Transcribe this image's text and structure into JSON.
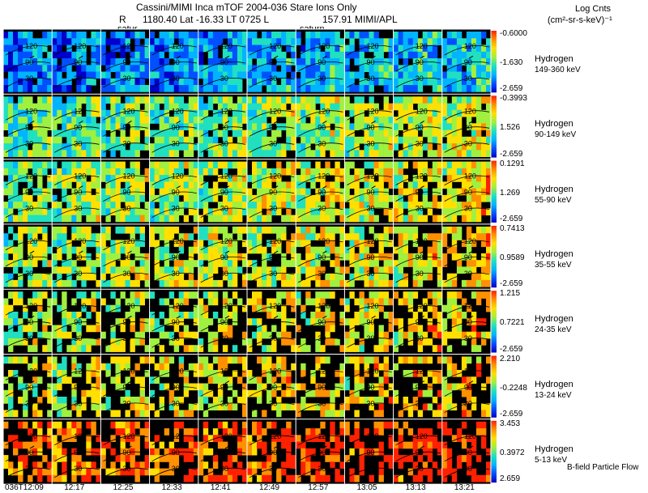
{
  "header": {
    "title": "Cassini/MIMI Inca mTOF  2004-036   Stare   Ions Only",
    "line2_r": "R",
    "line2_info": "1180.40 Lat -16.33 LT 0725 L",
    "line2_tail": "157.91  MIMI/APL",
    "units_line1": "Log Cnts",
    "units_line2": "(cm²-sr-s-keV)⁻¹",
    "saturn_label_1": "satur",
    "saturn_label_2": "saturn"
  },
  "footer": {
    "legend_text": "B-field Particle Flow"
  },
  "chart_data": {
    "type": "heatmap",
    "description_free": true,
    "times": [
      "036T12:09",
      "12:17",
      "12:25",
      "12:33",
      "12:41",
      "12:49",
      "12:57",
      "13:05",
      "13:13",
      "13:21"
    ],
    "rows": [
      {
        "species": "Hydrogen",
        "energy": "149-360 keV",
        "cb_max": "-0.6000",
        "cb_mid": "-1.630",
        "cb_min": "-2.659",
        "level": 0.18,
        "density": 0.9
      },
      {
        "species": "Hydrogen",
        "energy": "90-149 keV",
        "cb_max": "-0.3993",
        "cb_mid": "1.526",
        "cb_min": "-2.659",
        "level": 0.42,
        "density": 0.9
      },
      {
        "species": "Hydrogen",
        "energy": "55-90 keV",
        "cb_max": "0.1291",
        "cb_mid": "1.269",
        "cb_min": "-2.659",
        "level": 0.48,
        "density": 0.85
      },
      {
        "species": "Hydrogen",
        "energy": "35-55 keV",
        "cb_max": "0.7413",
        "cb_mid": "0.9589",
        "cb_min": "-2.659",
        "level": 0.5,
        "density": 0.75
      },
      {
        "species": "Hydrogen",
        "energy": "24-35 keV",
        "cb_max": "1.215",
        "cb_mid": "0.7221",
        "cb_min": "-2.659",
        "level": 0.52,
        "density": 0.55
      },
      {
        "species": "Hydrogen",
        "energy": "13-24 keV",
        "cb_max": "2.210",
        "cb_mid": "-0.2248",
        "cb_min": "-2.659",
        "level": 0.55,
        "density": 0.5
      },
      {
        "species": "Hydrogen",
        "energy": "5-13 keV",
        "cb_max": "3.453",
        "cb_mid": "0.3972",
        "cb_min": "2.659",
        "level": 0.78,
        "density": 0.55
      }
    ],
    "contour_labels": [
      "150",
      "120",
      "90",
      "60",
      "30"
    ],
    "colorscale": [
      "#0000c8",
      "#0050ff",
      "#00b4ff",
      "#20e0c0",
      "#a0f040",
      "#ffe000",
      "#ff9000",
      "#ff2000"
    ]
  }
}
